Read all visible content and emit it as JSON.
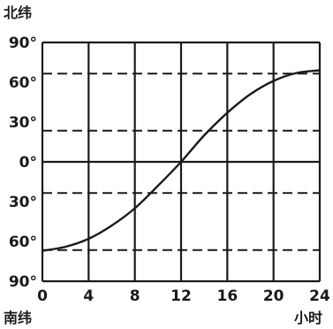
{
  "chart_data": {
    "type": "line",
    "title": "",
    "y_top_label": "北纬",
    "y_bottom_label": "南纬",
    "x_label": "小时",
    "x_ticks": [
      "0",
      "4",
      "8",
      "12",
      "16",
      "20",
      "24"
    ],
    "y_ticks": [
      "90°",
      "60°",
      "30°",
      "0°",
      "30°",
      "60°",
      "90°"
    ],
    "x_range": [
      0,
      24
    ],
    "y_range": [
      -90,
      90
    ],
    "x_tick_values": [
      0,
      4,
      8,
      12,
      16,
      20,
      24
    ],
    "y_tick_values": [
      90,
      60,
      30,
      0,
      -30,
      -60,
      -90
    ],
    "dashed_lines": [
      66.5,
      23.5,
      -23.5,
      -66.5
    ],
    "grid": true,
    "series": [
      {
        "x": [
          0,
          2,
          4,
          6,
          8,
          10,
          12,
          14,
          16,
          18,
          20,
          22,
          24
        ],
        "y": [
          -67,
          -64,
          -58,
          -48,
          -35,
          -18,
          0,
          20,
          37,
          51,
          61,
          67,
          69
        ]
      }
    ]
  }
}
